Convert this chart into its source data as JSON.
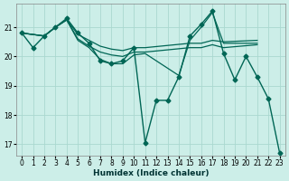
{
  "xlabel": "Humidex (Indice chaleur)",
  "bg_color": "#cceee8",
  "grid_color": "#aad8d0",
  "line_color": "#006655",
  "xlim": [
    -0.5,
    23.5
  ],
  "ylim": [
    16.6,
    21.8
  ],
  "yticks": [
    17,
    18,
    19,
    20,
    21
  ],
  "xticks": [
    0,
    1,
    2,
    3,
    4,
    5,
    6,
    7,
    8,
    9,
    10,
    11,
    12,
    13,
    14,
    15,
    16,
    17,
    18,
    19,
    20,
    21,
    22,
    23
  ],
  "series_main": {
    "x": [
      0,
      1,
      2,
      3,
      4,
      5,
      6,
      7,
      8,
      9,
      10,
      11,
      12,
      13,
      14,
      15,
      16,
      17,
      18,
      19,
      20,
      21,
      22,
      23
    ],
    "y": [
      20.8,
      20.3,
      20.7,
      21.0,
      21.3,
      20.8,
      20.45,
      19.85,
      19.75,
      19.85,
      20.3,
      17.05,
      18.5,
      18.5,
      19.3,
      20.7,
      21.1,
      21.55,
      20.1,
      19.2,
      20.0,
      19.3,
      18.55,
      16.7
    ]
  },
  "series_flat1": {
    "x": [
      0,
      2,
      3,
      4,
      5,
      6,
      7,
      8,
      9,
      10,
      11,
      15,
      16,
      17,
      18,
      21
    ],
    "y": [
      20.8,
      20.7,
      21.0,
      21.25,
      20.75,
      20.55,
      20.35,
      20.25,
      20.2,
      20.3,
      20.3,
      20.45,
      20.45,
      20.55,
      20.5,
      20.55
    ]
  },
  "series_flat2": {
    "x": [
      0,
      2,
      3,
      4,
      5,
      6,
      7,
      8,
      9,
      10,
      11,
      15,
      16,
      17,
      18,
      21
    ],
    "y": [
      20.8,
      20.7,
      21.0,
      21.25,
      20.6,
      20.35,
      20.15,
      20.05,
      20.0,
      20.15,
      20.15,
      20.3,
      20.3,
      20.4,
      20.3,
      20.4
    ]
  },
  "series_diagonal": {
    "x": [
      0,
      2,
      3,
      4,
      5,
      6,
      7,
      8,
      9,
      10,
      11,
      14,
      15,
      16,
      17,
      18,
      21
    ],
    "y": [
      20.8,
      20.7,
      21.0,
      21.25,
      20.55,
      20.3,
      19.9,
      19.75,
      19.75,
      20.05,
      20.1,
      19.35,
      20.55,
      21.0,
      21.5,
      20.45,
      20.45
    ]
  }
}
